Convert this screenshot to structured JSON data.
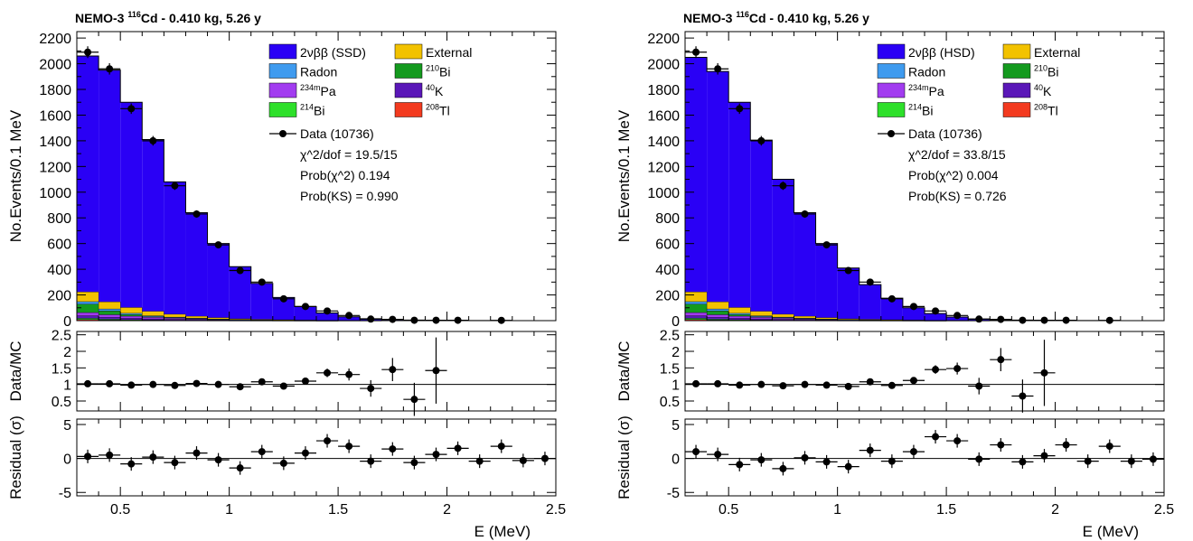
{
  "colors": {
    "ssd": "#2a00f5",
    "external": "#f2c200",
    "radon": "#3f9bef",
    "bi210": "#149a1e",
    "pa234m": "#a23cf0",
    "k40": "#5a17b8",
    "bi214": "#2ee02a",
    "tl208": "#f33a1f"
  },
  "chart_data": [
    {
      "type": "bar",
      "panel": "left",
      "title": {
        "prefix": "NEMO-3 ",
        "sup": "116",
        "suffix": "Cd - 0.410 kg, 5.26 y"
      },
      "xlabel": "E (MeV)",
      "ylabel": "No.Events/0.1 MeV",
      "ratio_label": "Data/MC",
      "residual_label": "Residual (σ)",
      "xlim": [
        0.3,
        2.5
      ],
      "ylim": [
        0,
        2250
      ],
      "ratio_ylim": [
        0.2,
        2.6
      ],
      "residual_ylim": [
        -5.5,
        5.8
      ],
      "xticks": [
        "0.5",
        "1",
        "1.5",
        "2",
        "2.5"
      ],
      "yticks": [
        "0",
        "200",
        "400",
        "600",
        "800",
        "1000",
        "1200",
        "1400",
        "1600",
        "1800",
        "2000",
        "2200"
      ],
      "ratio_ticks": [
        "0.5",
        "1",
        "1.5",
        "2",
        "2.5"
      ],
      "residual_ticks": [
        "-5",
        "0",
        "5"
      ],
      "legend": {
        "items": [
          {
            "key": "ssd",
            "label": "2νββ (SSD)",
            "sup": ""
          },
          {
            "key": "external",
            "label": "External",
            "sup": ""
          },
          {
            "key": "radon",
            "label": "Radon",
            "sup": ""
          },
          {
            "key": "bi210",
            "label": "Bi",
            "sup": "210"
          },
          {
            "key": "pa234m",
            "label": "Pa",
            "sup": "234m"
          },
          {
            "key": "k40",
            "label": "K",
            "sup": "40"
          },
          {
            "key": "bi214",
            "label": "Bi",
            "sup": "214"
          },
          {
            "key": "tl208",
            "label": "Tl",
            "sup": "208"
          }
        ],
        "data_label": "Data (10736)",
        "stats": [
          "χ^2/dof = 19.5/15",
          "Prob(χ^2) 0.194",
          "Prob(KS) = 0.990"
        ]
      },
      "bins": {
        "x_low": [
          0.3,
          0.4,
          0.5,
          0.6,
          0.7,
          0.8,
          0.9,
          1.0,
          1.1,
          1.2,
          1.3,
          1.4,
          1.5,
          1.6,
          1.7,
          1.8,
          1.9,
          2.0,
          2.1,
          2.2,
          2.3,
          2.4
        ],
        "total": [
          2060,
          1950,
          1700,
          1410,
          1080,
          840,
          600,
          420,
          290,
          180,
          110,
          60,
          30,
          15,
          8,
          4,
          2,
          1,
          0.5,
          0.3,
          0.2,
          0.1
        ],
        "series": [
          {
            "key": "tl208",
            "values": [
              8,
              5,
              3,
              2,
              1.5,
              1,
              0.8,
              0.5,
              0.4,
              0.3,
              0.2,
              0.1,
              0,
              0,
              0,
              0,
              0,
              0,
              0,
              0,
              0,
              0
            ]
          },
          {
            "key": "bi214",
            "values": [
              10,
              6,
              4,
              3,
              2,
              1.5,
              1,
              0.7,
              0.5,
              0.3,
              0.2,
              0.1,
              0,
              0,
              0,
              0,
              0,
              0,
              0,
              0,
              0,
              0
            ]
          },
          {
            "key": "k40",
            "values": [
              20,
              15,
              12,
              9,
              7,
              5,
              3,
              2,
              1.5,
              1,
              0.5,
              0.3,
              0,
              0,
              0,
              0,
              0,
              0,
              0,
              0,
              0,
              0
            ]
          },
          {
            "key": "pa234m",
            "values": [
              25,
              20,
              16,
              12,
              10,
              8,
              6,
              4,
              3,
              2,
              1,
              0.5,
              0.3,
              0,
              0,
              0,
              0,
              0,
              0,
              0,
              0,
              0
            ]
          },
          {
            "key": "bi210",
            "values": [
              65,
              30,
              12,
              5,
              2,
              1,
              0.5,
              0,
              0,
              0,
              0,
              0,
              0,
              0,
              0,
              0,
              0,
              0,
              0,
              0,
              0,
              0
            ]
          },
          {
            "key": "radon",
            "values": [
              20,
              15,
              10,
              7,
              5,
              3,
              2,
              1,
              0.5,
              0.3,
              0.2,
              0.1,
              0,
              0,
              0,
              0,
              0,
              0,
              0,
              0,
              0,
              0
            ]
          },
          {
            "key": "external",
            "values": [
              75,
              55,
              45,
              35,
              22,
              15,
              10,
              6,
              4,
              3,
              2,
              1,
              0.5,
              0.3,
              0,
              0,
              0,
              0,
              0,
              0,
              0,
              0
            ]
          }
        ]
      },
      "data_points": {
        "x": [
          0.35,
          0.45,
          0.55,
          0.65,
          0.75,
          0.85,
          0.95,
          1.05,
          1.15,
          1.25,
          1.35,
          1.45,
          1.55,
          1.65,
          1.75,
          1.85,
          1.95,
          2.05,
          2.25
        ],
        "y": [
          2090,
          1960,
          1650,
          1400,
          1050,
          830,
          590,
          390,
          300,
          170,
          110,
          75,
          40,
          12,
          10,
          3,
          3,
          3,
          2
        ],
        "ratio": [
          1.02,
          1.02,
          0.98,
          1.0,
          0.97,
          1.03,
          1.0,
          0.93,
          1.08,
          0.95,
          1.1,
          1.35,
          1.3,
          0.88,
          1.45,
          0.55,
          1.42
        ],
        "ratio_err": [
          0.03,
          0.03,
          0.03,
          0.03,
          0.03,
          0.04,
          0.04,
          0.05,
          0.06,
          0.08,
          0.1,
          0.13,
          0.18,
          0.25,
          0.35,
          0.5,
          1.0
        ],
        "residual": [
          0.3,
          0.5,
          -0.8,
          0.2,
          -0.6,
          0.8,
          -0.2,
          -1.4,
          1.0,
          -0.7,
          0.8,
          2.6,
          1.8,
          -0.4,
          1.4,
          -0.6,
          0.6,
          1.5,
          -0.4,
          1.8,
          -0.3,
          0.0
        ],
        "residual_x": [
          0.35,
          0.45,
          0.55,
          0.65,
          0.75,
          0.85,
          0.95,
          1.05,
          1.15,
          1.25,
          1.35,
          1.45,
          1.55,
          1.65,
          1.75,
          1.85,
          1.95,
          2.05,
          2.15,
          2.25,
          2.35,
          2.45
        ]
      }
    },
    {
      "type": "bar",
      "panel": "right",
      "title": {
        "prefix": "NEMO-3 ",
        "sup": "116",
        "suffix": "Cd - 0.410 kg, 5.26 y"
      },
      "xlabel": "E (MeV)",
      "ylabel": "No.Events/0.1 MeV",
      "ratio_label": "Data/MC",
      "residual_label": "Residual (σ)",
      "xlim": [
        0.3,
        2.5
      ],
      "ylim": [
        0,
        2250
      ],
      "ratio_ylim": [
        0.2,
        2.6
      ],
      "residual_ylim": [
        -5.5,
        5.8
      ],
      "xticks": [
        "0.5",
        "1",
        "1.5",
        "2",
        "2.5"
      ],
      "yticks": [
        "0",
        "200",
        "400",
        "600",
        "800",
        "1000",
        "1200",
        "1400",
        "1600",
        "1800",
        "2000",
        "2200"
      ],
      "ratio_ticks": [
        "0.5",
        "1",
        "1.5",
        "2",
        "2.5"
      ],
      "residual_ticks": [
        "-5",
        "0",
        "5"
      ],
      "legend": {
        "items": [
          {
            "key": "ssd",
            "label": "2νββ (HSD)",
            "sup": ""
          },
          {
            "key": "external",
            "label": "External",
            "sup": ""
          },
          {
            "key": "radon",
            "label": "Radon",
            "sup": ""
          },
          {
            "key": "bi210",
            "label": "Bi",
            "sup": "210"
          },
          {
            "key": "pa234m",
            "label": "Pa",
            "sup": "234m"
          },
          {
            "key": "k40",
            "label": "K",
            "sup": "40"
          },
          {
            "key": "bi214",
            "label": "Bi",
            "sup": "214"
          },
          {
            "key": "tl208",
            "label": "Tl",
            "sup": "208"
          }
        ],
        "data_label": "Data (10736)",
        "stats": [
          "χ^2/dof = 33.8/15",
          "Prob(χ^2) 0.004",
          "Prob(KS) = 0.726"
        ]
      },
      "bins": {
        "x_low": [
          0.3,
          0.4,
          0.5,
          0.6,
          0.7,
          0.8,
          0.9,
          1.0,
          1.1,
          1.2,
          1.3,
          1.4,
          1.5,
          1.6,
          1.7,
          1.8,
          1.9,
          2.0,
          2.1,
          2.2,
          2.3,
          2.4
        ],
        "total": [
          2050,
          1940,
          1700,
          1405,
          1100,
          840,
          600,
          410,
          280,
          175,
          100,
          55,
          28,
          13,
          7,
          4,
          2,
          1,
          0.5,
          0.3,
          0.2,
          0.1
        ],
        "series": [
          {
            "key": "tl208",
            "values": [
              8,
              5,
              3,
              2,
              1.5,
              1,
              0.8,
              0.5,
              0.4,
              0.3,
              0.2,
              0.1,
              0,
              0,
              0,
              0,
              0,
              0,
              0,
              0,
              0,
              0
            ]
          },
          {
            "key": "bi214",
            "values": [
              10,
              6,
              4,
              3,
              2,
              1.5,
              1,
              0.7,
              0.5,
              0.3,
              0.2,
              0.1,
              0,
              0,
              0,
              0,
              0,
              0,
              0,
              0,
              0,
              0
            ]
          },
          {
            "key": "k40",
            "values": [
              20,
              15,
              12,
              9,
              7,
              5,
              3,
              2,
              1.5,
              1,
              0.5,
              0.3,
              0,
              0,
              0,
              0,
              0,
              0,
              0,
              0,
              0,
              0
            ]
          },
          {
            "key": "pa234m",
            "values": [
              25,
              20,
              16,
              12,
              10,
              8,
              6,
              4,
              3,
              2,
              1,
              0.5,
              0.3,
              0,
              0,
              0,
              0,
              0,
              0,
              0,
              0,
              0
            ]
          },
          {
            "key": "bi210",
            "values": [
              65,
              30,
              12,
              5,
              2,
              1,
              0.5,
              0,
              0,
              0,
              0,
              0,
              0,
              0,
              0,
              0,
              0,
              0,
              0,
              0,
              0,
              0
            ]
          },
          {
            "key": "radon",
            "values": [
              20,
              15,
              10,
              7,
              5,
              3,
              2,
              1,
              0.5,
              0.3,
              0.2,
              0.1,
              0,
              0,
              0,
              0,
              0,
              0,
              0,
              0,
              0,
              0
            ]
          },
          {
            "key": "external",
            "values": [
              75,
              55,
              45,
              35,
              22,
              15,
              10,
              6,
              4,
              3,
              2,
              1,
              0.5,
              0.3,
              0,
              0,
              0,
              0,
              0,
              0,
              0,
              0
            ]
          }
        ]
      },
      "data_points": {
        "x": [
          0.35,
          0.45,
          0.55,
          0.65,
          0.75,
          0.85,
          0.95,
          1.05,
          1.15,
          1.25,
          1.35,
          1.45,
          1.55,
          1.65,
          1.75,
          1.85,
          1.95,
          2.05,
          2.25
        ],
        "y": [
          2090,
          1960,
          1650,
          1400,
          1050,
          830,
          590,
          390,
          300,
          170,
          110,
          75,
          40,
          12,
          10,
          3,
          3,
          3,
          2
        ],
        "ratio": [
          1.02,
          1.02,
          0.98,
          1.0,
          0.96,
          1.0,
          0.98,
          0.94,
          1.08,
          0.97,
          1.12,
          1.45,
          1.48,
          0.95,
          1.75,
          0.65,
          1.35
        ],
        "ratio_err": [
          0.03,
          0.03,
          0.03,
          0.03,
          0.03,
          0.04,
          0.04,
          0.05,
          0.06,
          0.08,
          0.1,
          0.13,
          0.18,
          0.25,
          0.35,
          0.5,
          1.0
        ],
        "residual": [
          1.0,
          0.6,
          -0.9,
          -0.2,
          -1.5,
          0.1,
          -0.5,
          -1.2,
          1.2,
          -0.4,
          1.0,
          3.2,
          2.6,
          -0.1,
          2.0,
          -0.5,
          0.4,
          2.0,
          -0.4,
          1.8,
          -0.4,
          -0.1
        ],
        "residual_x": [
          0.35,
          0.45,
          0.55,
          0.65,
          0.75,
          0.85,
          0.95,
          1.05,
          1.15,
          1.25,
          1.35,
          1.45,
          1.55,
          1.65,
          1.75,
          1.85,
          1.95,
          2.05,
          2.15,
          2.25,
          2.35,
          2.45
        ]
      }
    }
  ]
}
